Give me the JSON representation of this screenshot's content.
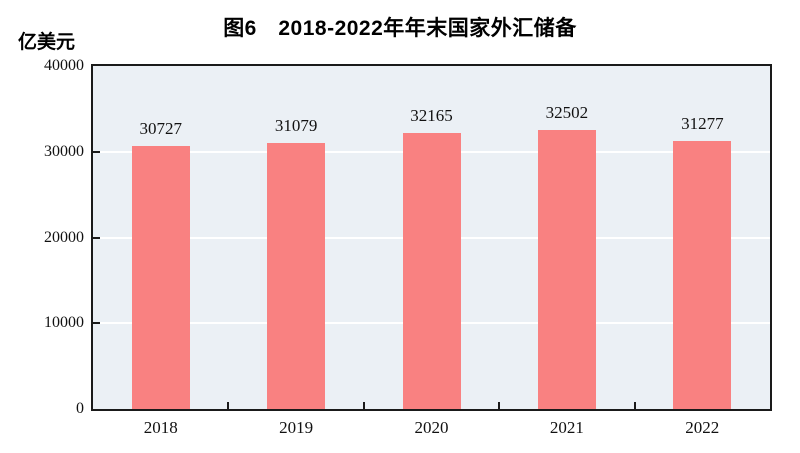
{
  "chart_data": {
    "type": "bar",
    "title": "图6　2018-2022年年末国家外汇储备",
    "unit_label": "亿美元",
    "categories": [
      "2018",
      "2019",
      "2020",
      "2021",
      "2022"
    ],
    "values": [
      30727,
      31079,
      32165,
      32502,
      31277
    ],
    "value_labels": [
      "30727",
      "31079",
      "32165",
      "32502",
      "31277"
    ],
    "xlabel": "",
    "ylabel": "亿美元",
    "ylim": [
      0,
      40000
    ],
    "y_ticks": [
      0,
      10000,
      20000,
      30000,
      40000
    ],
    "grid": true,
    "legend": false,
    "colors": {
      "bar": "#f98181",
      "plot_background": "#ebf0f5",
      "gridline": "#ffffff",
      "axis": "#1a1a1a",
      "text": "#000000"
    }
  }
}
